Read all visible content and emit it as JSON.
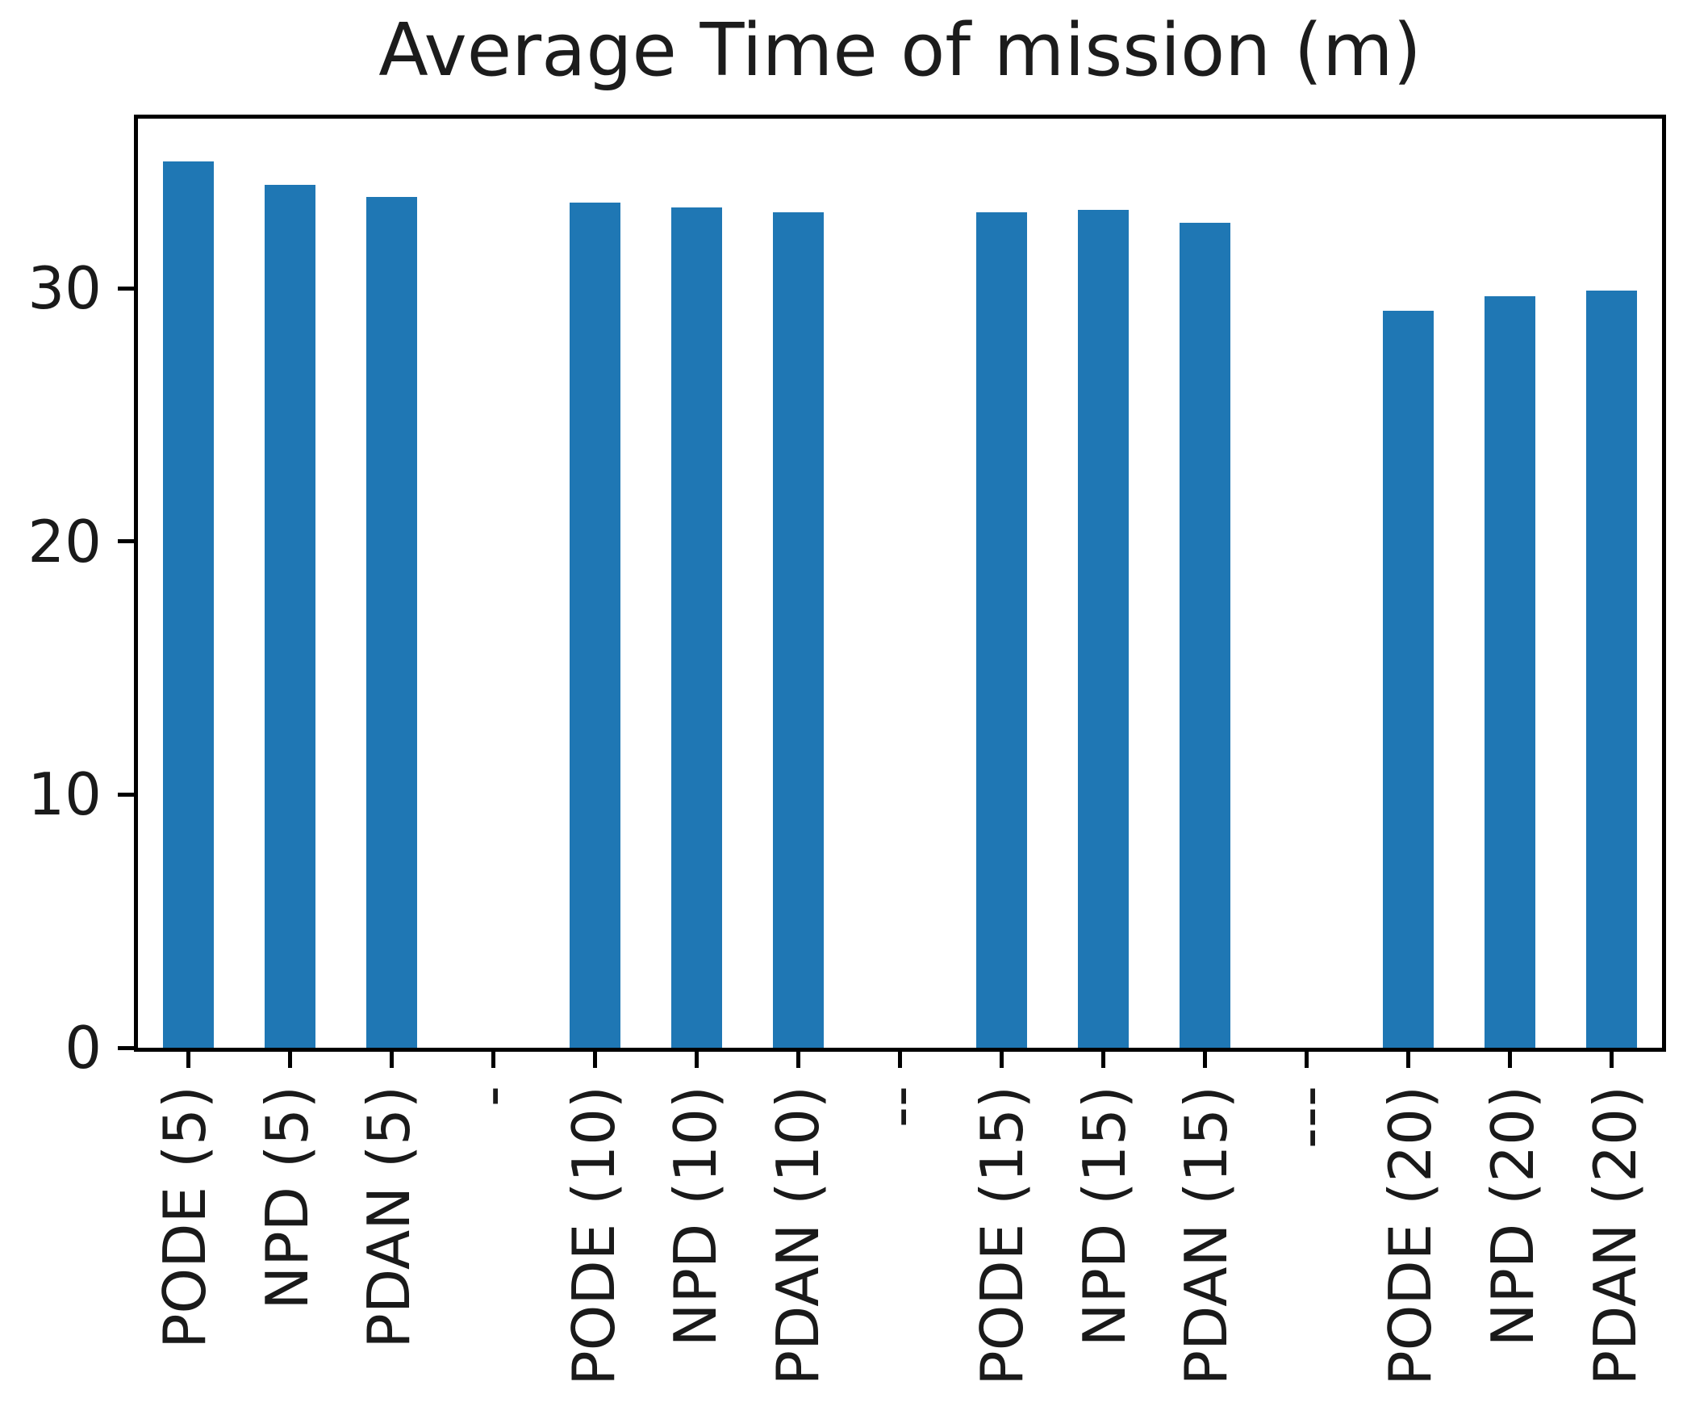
{
  "chart_data": {
    "type": "bar",
    "title": "Average Time of mission (m)",
    "xlabel": "",
    "ylabel": "",
    "categories": [
      "PODE (5)",
      "NPD (5)",
      "PDAN (5)",
      "-",
      "PODE (10)",
      "NPD (10)",
      "PDAN (10)",
      "--",
      "PODE (15)",
      "NPD (15)",
      "PDAN (15)",
      "---",
      "PODE (20)",
      "NPD (20)",
      "PDAN (20)"
    ],
    "values": [
      35.0,
      34.1,
      33.6,
      null,
      33.4,
      33.2,
      33.0,
      null,
      33.0,
      33.1,
      32.6,
      null,
      29.1,
      29.7,
      29.9
    ],
    "ylim": [
      0,
      36.7
    ],
    "yticks": [
      0,
      10,
      20,
      30
    ],
    "xtick_label_rotation": 90,
    "grid": false,
    "legend": "none",
    "bar_color": "#1f77b4",
    "axis_color": "#000000",
    "text_color": "#1a1a1a"
  }
}
